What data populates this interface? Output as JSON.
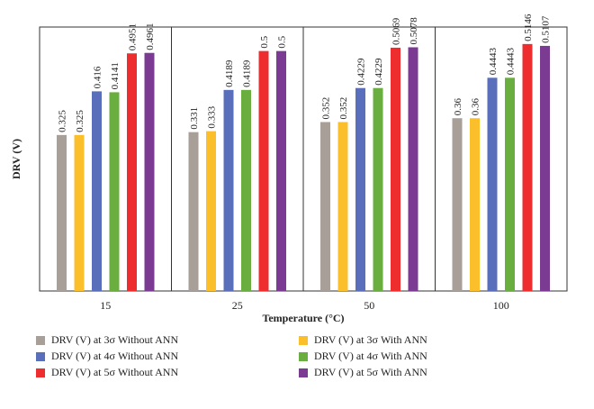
{
  "chart_data": {
    "type": "bar",
    "title": "",
    "xlabel": "Temperature (°C)",
    "ylabel": "DRV (V)",
    "categories": [
      "15",
      "25",
      "50",
      "100"
    ],
    "ylim": [
      0,
      0.55
    ],
    "grid": false,
    "legend_position": "bottom",
    "series": [
      {
        "name": "DRV (V) at 3σ Without ANN",
        "color": "#a89f99",
        "values": [
          0.325,
          0.331,
          0.352,
          0.36
        ],
        "labels": [
          "0.325",
          "0.331",
          "0.352",
          "0.36"
        ]
      },
      {
        "name": "DRV (V) at 3σ With ANN",
        "color": "#fbbf2c",
        "values": [
          0.325,
          0.333,
          0.352,
          0.36
        ],
        "labels": [
          "0.325",
          "0.333",
          "0.352",
          "0.36"
        ]
      },
      {
        "name": "DRV (V) at 4σ Without ANN",
        "color": "#5a6fbb",
        "values": [
          0.416,
          0.4189,
          0.4229,
          0.4443
        ],
        "labels": [
          "0.416",
          "0.4189",
          "0.4229",
          "0.4443"
        ]
      },
      {
        "name": "DRV (V) at 4σ With ANN",
        "color": "#6aae3f",
        "values": [
          0.4141,
          0.4189,
          0.4229,
          0.4443
        ],
        "labels": [
          "0.4141",
          "0.4189",
          "0.4229",
          "0.4443"
        ]
      },
      {
        "name": "DRV (V) at 5σ Without ANN",
        "color": "#ee2e2e",
        "values": [
          0.4951,
          0.5,
          0.5069,
          0.5146
        ],
        "labels": [
          "0.4951",
          "0.5",
          "0.5069",
          "0.5146"
        ]
      },
      {
        "name": "DRV (V) at 5σ With ANN",
        "color": "#7b3b93",
        "values": [
          0.4961,
          0.5,
          0.5078,
          0.5107
        ],
        "labels": [
          "0.4961",
          "0.5",
          "0.5078",
          "0.5107"
        ]
      }
    ]
  }
}
